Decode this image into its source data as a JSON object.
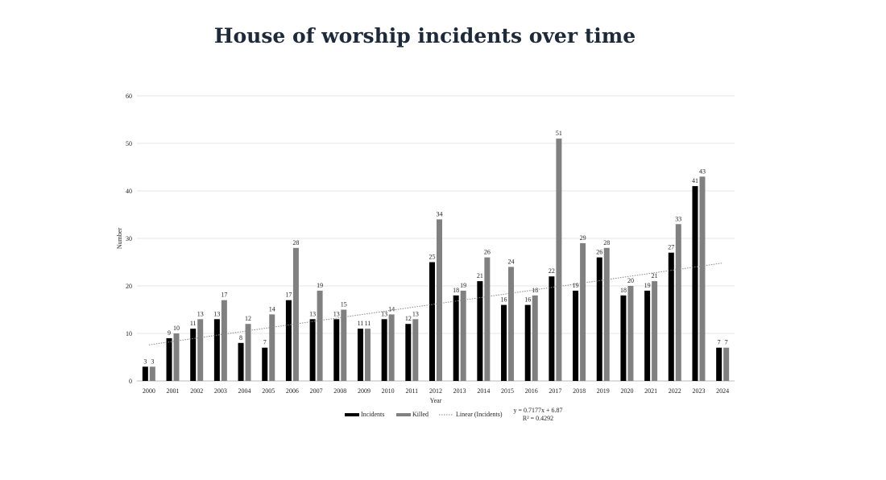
{
  "title": "House of worship incidents over time",
  "chart_data": {
    "type": "bar",
    "title": "House of worship incidents over time",
    "xlabel": "Year",
    "ylabel": "Number",
    "ylim": [
      0,
      60
    ],
    "yticks": [
      0,
      10,
      20,
      30,
      40,
      50,
      60
    ],
    "grid": true,
    "legend_position": "bottom",
    "categories": [
      "2000",
      "2001",
      "2002",
      "2003",
      "2004",
      "2005",
      "2006",
      "2007",
      "2008",
      "2009",
      "2010",
      "2011",
      "2012",
      "2013",
      "2014",
      "2015",
      "2016",
      "2017",
      "2018",
      "2019",
      "2020",
      "2021",
      "2022",
      "2023",
      "2024"
    ],
    "series": [
      {
        "name": "Incidents",
        "color": "#000000",
        "values": [
          3,
          9,
          11,
          13,
          8,
          7,
          17,
          13,
          13,
          11,
          13,
          12,
          25,
          18,
          21,
          16,
          16,
          22,
          19,
          26,
          18,
          19,
          27,
          41,
          7
        ]
      },
      {
        "name": "Killed",
        "color": "#808080",
        "values": [
          3,
          10,
          13,
          17,
          12,
          14,
          28,
          19,
          15,
          11,
          14,
          13,
          34,
          19,
          26,
          24,
          18,
          51,
          29,
          28,
          20,
          21,
          33,
          43,
          7
        ]
      }
    ],
    "trendline": {
      "name": "Linear (Incidents)",
      "slope": 0.7177,
      "intercept": 6.87,
      "equation": "y = 0.7177x + 6.87",
      "r_squared": "R² = 0.4292"
    }
  }
}
